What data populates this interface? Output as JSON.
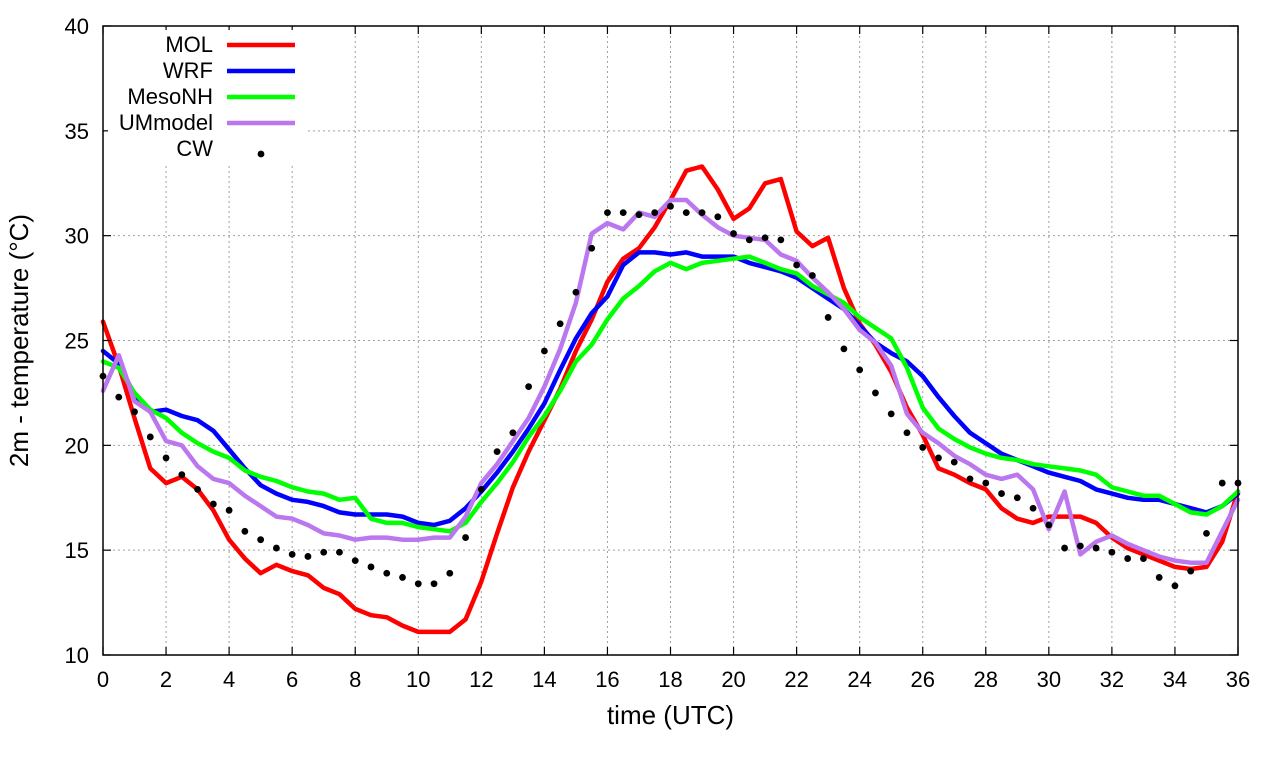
{
  "chart_data": {
    "type": "line",
    "title": "",
    "xlabel": "time (UTC)",
    "ylabel": "2m - temperature (°C)",
    "xlim": [
      0,
      36
    ],
    "ylim": [
      10,
      40
    ],
    "xticks": [
      0,
      2,
      4,
      6,
      8,
      10,
      12,
      14,
      16,
      18,
      20,
      22,
      24,
      26,
      28,
      30,
      32,
      34,
      36
    ],
    "yticks": [
      10,
      15,
      20,
      25,
      30,
      35,
      40
    ],
    "grid": true,
    "legend_position": "top-left",
    "series": [
      {
        "name": "MOL",
        "style": "line",
        "color": "#ff0000",
        "x": [
          0,
          0.5,
          1,
          1.5,
          2,
          2.5,
          3,
          3.5,
          4,
          4.5,
          5,
          5.5,
          6,
          6.5,
          7,
          7.5,
          8,
          8.5,
          9,
          9.5,
          10,
          10.5,
          11,
          11.5,
          12,
          12.5,
          13,
          13.5,
          14,
          14.5,
          15,
          15.5,
          16,
          16.5,
          17,
          17.5,
          18,
          18.5,
          19,
          19.5,
          20,
          20.5,
          21,
          21.5,
          22,
          22.5,
          23,
          23.5,
          24,
          24.5,
          25,
          25.5,
          26,
          26.5,
          27,
          27.5,
          28,
          28.5,
          29,
          29.5,
          30,
          30.5,
          31,
          31.5,
          32,
          32.5,
          33,
          33.5,
          34,
          34.5,
          35,
          35.5,
          36
        ],
        "y": [
          25.9,
          23.8,
          21.3,
          18.9,
          18.2,
          18.5,
          17.9,
          16.9,
          15.5,
          14.6,
          13.9,
          14.3,
          14.0,
          13.8,
          13.2,
          12.9,
          12.2,
          11.9,
          11.8,
          11.4,
          11.1,
          11.1,
          11.1,
          11.7,
          13.5,
          15.8,
          18.0,
          19.7,
          21.2,
          22.7,
          24.5,
          26.0,
          27.8,
          28.9,
          29.4,
          30.4,
          31.7,
          33.1,
          33.3,
          32.2,
          30.8,
          31.3,
          32.5,
          32.7,
          30.2,
          29.5,
          29.9,
          27.5,
          25.8,
          24.8,
          23.5,
          21.8,
          20.5,
          18.9,
          18.6,
          18.2,
          17.9,
          17.0,
          16.5,
          16.3,
          16.6,
          16.6,
          16.6,
          16.3,
          15.6,
          15.1,
          14.8,
          14.5,
          14.2,
          14.1,
          14.2,
          15.4,
          17.8
        ]
      },
      {
        "name": "WRF",
        "style": "line",
        "color": "#0000ff",
        "x": [
          0,
          0.5,
          1,
          1.5,
          2,
          2.5,
          3,
          3.5,
          4,
          4.5,
          5,
          5.5,
          6,
          6.5,
          7,
          7.5,
          8,
          8.5,
          9,
          9.5,
          10,
          10.5,
          11,
          11.5,
          12,
          12.5,
          13,
          13.5,
          14,
          14.5,
          15,
          15.5,
          16,
          16.5,
          17,
          17.5,
          18,
          18.5,
          19,
          19.5,
          20,
          20.5,
          21,
          21.5,
          22,
          22.5,
          23,
          23.5,
          24,
          24.5,
          25,
          25.5,
          26,
          26.5,
          27,
          27.5,
          28,
          28.5,
          29,
          29.5,
          30,
          30.5,
          31,
          31.5,
          32,
          32.5,
          33,
          33.5,
          34,
          34.5,
          35,
          35.5,
          36
        ],
        "y": [
          24.5,
          23.9,
          22.4,
          21.6,
          21.7,
          21.4,
          21.2,
          20.7,
          19.8,
          18.9,
          18.1,
          17.7,
          17.4,
          17.3,
          17.1,
          16.8,
          16.7,
          16.7,
          16.7,
          16.6,
          16.3,
          16.2,
          16.4,
          17.0,
          17.8,
          18.7,
          19.7,
          20.8,
          22.0,
          23.6,
          25.1,
          26.3,
          27.1,
          28.6,
          29.2,
          29.2,
          29.1,
          29.2,
          29.0,
          29.0,
          29.0,
          28.7,
          28.5,
          28.3,
          28.0,
          27.5,
          27.0,
          26.5,
          25.7,
          24.9,
          24.4,
          24.0,
          23.3,
          22.3,
          21.4,
          20.6,
          20.1,
          19.6,
          19.3,
          19.0,
          18.7,
          18.5,
          18.3,
          17.9,
          17.7,
          17.5,
          17.4,
          17.4,
          17.2,
          17.0,
          16.8,
          17.1,
          17.7
        ]
      },
      {
        "name": "MesoNH",
        "style": "line",
        "color": "#00ff00",
        "x": [
          0,
          0.5,
          1,
          1.5,
          2,
          2.5,
          3,
          3.5,
          4,
          4.5,
          5,
          5.5,
          6,
          6.5,
          7,
          7.5,
          8,
          8.5,
          9,
          9.5,
          10,
          10.5,
          11,
          11.5,
          12,
          12.5,
          13,
          13.5,
          14,
          14.5,
          15,
          15.5,
          16,
          16.5,
          17,
          17.5,
          18,
          18.5,
          19,
          19.5,
          20,
          20.5,
          21,
          21.5,
          22,
          22.5,
          23,
          23.5,
          24,
          24.5,
          25,
          25.5,
          26,
          26.5,
          27,
          27.5,
          28,
          28.5,
          29,
          29.5,
          30,
          30.5,
          31,
          31.5,
          32,
          32.5,
          33,
          33.5,
          34,
          34.5,
          35,
          35.5,
          36
        ],
        "y": [
          24.0,
          23.7,
          22.5,
          21.7,
          21.3,
          20.6,
          20.1,
          19.7,
          19.4,
          18.8,
          18.5,
          18.3,
          18.0,
          17.8,
          17.7,
          17.4,
          17.5,
          16.5,
          16.3,
          16.3,
          16.1,
          16.0,
          15.9,
          16.3,
          17.3,
          18.2,
          19.2,
          20.4,
          21.4,
          22.6,
          24.0,
          24.8,
          26.0,
          27.0,
          27.6,
          28.3,
          28.7,
          28.4,
          28.7,
          28.8,
          28.9,
          29.0,
          28.7,
          28.4,
          28.2,
          27.6,
          27.2,
          26.8,
          26.1,
          25.6,
          25.1,
          23.7,
          21.8,
          20.8,
          20.3,
          19.9,
          19.6,
          19.4,
          19.3,
          19.1,
          19.0,
          18.9,
          18.8,
          18.6,
          18.0,
          17.8,
          17.6,
          17.6,
          17.2,
          16.8,
          16.7,
          17.1,
          17.8
        ]
      },
      {
        "name": "UMmodel",
        "style": "line",
        "color": "#bb77ee",
        "x": [
          0,
          0.5,
          1,
          1.5,
          2,
          2.5,
          3,
          3.5,
          4,
          4.5,
          5,
          5.5,
          6,
          6.5,
          7,
          7.5,
          8,
          8.5,
          9,
          9.5,
          10,
          10.5,
          11,
          11.5,
          12,
          12.5,
          13,
          13.5,
          14,
          14.5,
          15,
          15.5,
          16,
          16.5,
          17,
          17.5,
          18,
          18.5,
          19,
          19.5,
          20,
          20.5,
          21,
          21.5,
          22,
          22.5,
          23,
          23.5,
          24,
          24.5,
          25,
          25.5,
          26,
          26.5,
          27,
          27.5,
          28,
          28.5,
          29,
          29.5,
          30,
          30.5,
          31,
          31.5,
          32,
          32.5,
          33,
          33.5,
          34,
          34.5,
          35,
          35.5,
          36
        ],
        "y": [
          22.6,
          24.3,
          22.1,
          21.6,
          20.2,
          20.0,
          19.0,
          18.4,
          18.2,
          17.6,
          17.1,
          16.6,
          16.5,
          16.2,
          15.8,
          15.7,
          15.5,
          15.6,
          15.6,
          15.5,
          15.5,
          15.6,
          15.6,
          16.6,
          18.2,
          19.1,
          20.2,
          21.3,
          22.8,
          24.6,
          26.8,
          30.1,
          30.6,
          30.3,
          31.1,
          30.9,
          31.7,
          31.7,
          31.0,
          30.4,
          30.0,
          29.9,
          29.8,
          29.1,
          28.8,
          28.0,
          27.3,
          26.5,
          25.5,
          24.9,
          23.8,
          21.5,
          20.6,
          20.1,
          19.5,
          19.1,
          18.6,
          18.4,
          18.6,
          17.9,
          16.0,
          17.8,
          14.8,
          15.4,
          15.7,
          15.3,
          15.0,
          14.7,
          14.5,
          14.4,
          14.4,
          15.9,
          17.4
        ]
      },
      {
        "name": "CW",
        "style": "points",
        "color": "#000000",
        "x": [
          0,
          0.5,
          1,
          1.5,
          2,
          2.5,
          3,
          3.5,
          4,
          4.5,
          5,
          5.5,
          6,
          6.5,
          7,
          7.5,
          8,
          8.5,
          9,
          9.5,
          10,
          10.5,
          11,
          11.5,
          12,
          12.5,
          13,
          13.5,
          14,
          14.5,
          15,
          15.5,
          16,
          16.5,
          17,
          17.5,
          18,
          18.5,
          19,
          19.5,
          20,
          20.5,
          21,
          21.5,
          22,
          22.5,
          23,
          23.5,
          24,
          24.5,
          25,
          25.5,
          26,
          26.5,
          27,
          27.5,
          28,
          28.5,
          29,
          29.5,
          30,
          30.5,
          31,
          31.5,
          32,
          32.5,
          33,
          33.5,
          34,
          34.5,
          35,
          35.5,
          36
        ],
        "y": [
          23.3,
          22.3,
          21.6,
          20.4,
          19.4,
          18.6,
          17.9,
          17.2,
          16.9,
          15.9,
          15.5,
          15.1,
          14.8,
          14.7,
          14.9,
          14.9,
          14.5,
          14.2,
          13.9,
          13.7,
          13.4,
          13.4,
          13.9,
          15.6,
          17.9,
          19.7,
          20.6,
          22.8,
          24.5,
          25.8,
          27.3,
          29.4,
          31.1,
          31.1,
          31.0,
          31.1,
          31.4,
          31.1,
          31.1,
          30.9,
          30.1,
          29.8,
          29.9,
          29.8,
          28.6,
          28.1,
          26.1,
          24.6,
          23.6,
          22.5,
          21.5,
          20.6,
          19.9,
          19.4,
          19.2,
          18.4,
          18.2,
          17.7,
          17.5,
          17.0,
          16.2,
          15.1,
          15.2,
          15.1,
          14.9,
          14.6,
          14.6,
          13.7,
          13.3,
          14.0,
          15.8,
          18.2,
          18.2
        ]
      }
    ]
  }
}
